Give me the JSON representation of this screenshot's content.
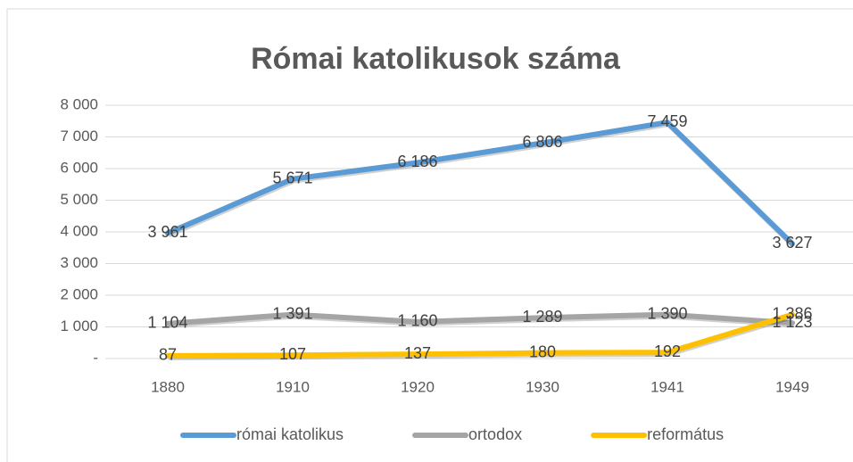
{
  "chart_data": {
    "type": "line",
    "title": "Római katolikusok száma",
    "categories": [
      "1880",
      "1910",
      "1920",
      "1930",
      "1941",
      "1949"
    ],
    "series": [
      {
        "name": "római katolikus",
        "color": "#5b9bd5",
        "values": [
          3961,
          5671,
          6186,
          6806,
          7459,
          3627
        ],
        "value_labels": [
          "3 961",
          "5 671",
          "6 186",
          "6 806",
          "7 459",
          "3 627"
        ]
      },
      {
        "name": "ortodox",
        "color": "#a5a5a5",
        "values": [
          1104,
          1391,
          1160,
          1289,
          1390,
          1123
        ],
        "value_labels": [
          "1 104",
          "1 391",
          "1 160",
          "1 289",
          "1 390",
          "1 123"
        ]
      },
      {
        "name": "református",
        "color": "#ffc000",
        "values": [
          87,
          107,
          137,
          180,
          192,
          1386
        ],
        "value_labels": [
          "87",
          "107",
          "137",
          "180",
          "192",
          "1 386"
        ]
      }
    ],
    "ylim": [
      0,
      8000
    ],
    "yticks": [
      {
        "value": 0,
        "label": "-"
      },
      {
        "value": 1000,
        "label": "1 000"
      },
      {
        "value": 2000,
        "label": "2 000"
      },
      {
        "value": 3000,
        "label": "3 000"
      },
      {
        "value": 4000,
        "label": "4 000"
      },
      {
        "value": 5000,
        "label": "5 000"
      },
      {
        "value": 6000,
        "label": "6 000"
      },
      {
        "value": 7000,
        "label": "7 000"
      },
      {
        "value": 8000,
        "label": "8 000"
      }
    ],
    "grid": true,
    "legend": "bottom"
  }
}
